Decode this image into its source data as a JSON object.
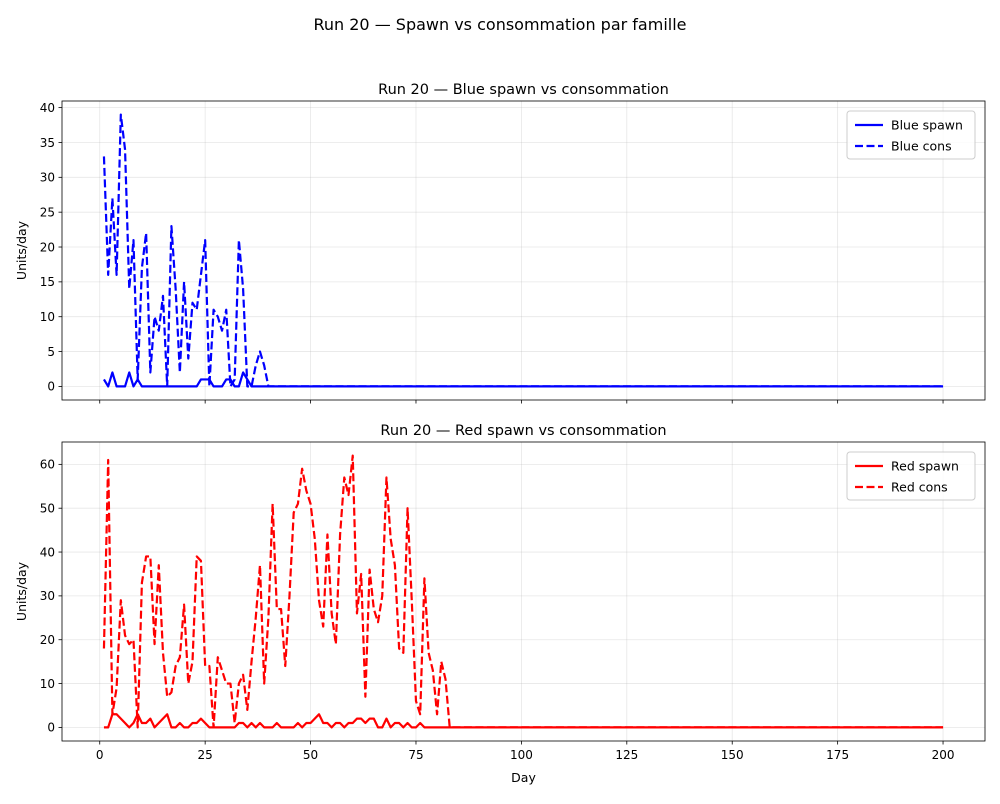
{
  "figure": {
    "suptitle": "Run 20 — Spawn vs consommation par famille"
  },
  "chart_data": [
    {
      "type": "line",
      "title": "Run 20 — Blue spawn vs consommation",
      "xlabel": "",
      "ylabel": "Units/day",
      "xlim": [
        -8.95,
        209.95
      ],
      "ylim": [
        -1.95,
        40.95
      ],
      "xticks": [
        0,
        25,
        50,
        75,
        100,
        125,
        150,
        175,
        200
      ],
      "xtick_labels_visible": false,
      "yticks": [
        0,
        5,
        10,
        15,
        20,
        25,
        30,
        35,
        40
      ],
      "grid": true,
      "legend_position": "upper right",
      "series": [
        {
          "name": "Blue spawn",
          "color": "#0000ff",
          "style": "solid",
          "points": [
            [
              1,
              1
            ],
            [
              2,
              0
            ],
            [
              3,
              2
            ],
            [
              4,
              0
            ],
            [
              5,
              0
            ],
            [
              6,
              0
            ],
            [
              7,
              2
            ],
            [
              8,
              0
            ],
            [
              9,
              1
            ],
            [
              10,
              0
            ],
            [
              15,
              0
            ],
            [
              16,
              0
            ],
            [
              17,
              0
            ],
            [
              23,
              0
            ],
            [
              24,
              1
            ],
            [
              25,
              1
            ],
            [
              26,
              1
            ],
            [
              27,
              0
            ],
            [
              29,
              0
            ],
            [
              30,
              1
            ],
            [
              31,
              1
            ],
            [
              32,
              0
            ],
            [
              33,
              0
            ],
            [
              34,
              2
            ],
            [
              35,
              1
            ],
            [
              36,
              0
            ],
            [
              200,
              0
            ]
          ]
        },
        {
          "name": "Blue cons",
          "color": "#0000ff",
          "style": "dashed",
          "points": [
            [
              1,
              33
            ],
            [
              2,
              16
            ],
            [
              3,
              27
            ],
            [
              4,
              16
            ],
            [
              5,
              39
            ],
            [
              6,
              34
            ],
            [
              7,
              14
            ],
            [
              8,
              21
            ],
            [
              9,
              1
            ],
            [
              10,
              17
            ],
            [
              11,
              22
            ],
            [
              12,
              2
            ],
            [
              13,
              10
            ],
            [
              14,
              8
            ],
            [
              15,
              13
            ],
            [
              16,
              0
            ],
            [
              17,
              23
            ],
            [
              18,
              14
            ],
            [
              19,
              2
            ],
            [
              20,
              15
            ],
            [
              21,
              4
            ],
            [
              22,
              12
            ],
            [
              23,
              11
            ],
            [
              24,
              16
            ],
            [
              25,
              21
            ],
            [
              26,
              0
            ],
            [
              27,
              11
            ],
            [
              28,
              10
            ],
            [
              29,
              8
            ],
            [
              30,
              11
            ],
            [
              31,
              0
            ],
            [
              32,
              1
            ],
            [
              33,
              21
            ],
            [
              34,
              14
            ],
            [
              35,
              0
            ],
            [
              36,
              0
            ],
            [
              37,
              3
            ],
            [
              38,
              5
            ],
            [
              39,
              3
            ],
            [
              40,
              0
            ],
            [
              200,
              0
            ]
          ]
        }
      ]
    },
    {
      "type": "line",
      "title": "Run 20 — Red spawn vs consommation",
      "xlabel": "Day",
      "ylabel": "Units/day",
      "xlim": [
        -8.95,
        209.95
      ],
      "ylim": [
        -3.1,
        65.1
      ],
      "xticks": [
        0,
        25,
        50,
        75,
        100,
        125,
        150,
        175,
        200
      ],
      "xtick_labels_visible": true,
      "yticks": [
        0,
        10,
        20,
        30,
        40,
        50,
        60
      ],
      "grid": true,
      "legend_position": "upper right",
      "series": [
        {
          "name": "Red spawn",
          "color": "#ff0000",
          "style": "solid",
          "points": [
            [
              1,
              0
            ],
            [
              2,
              0
            ],
            [
              3,
              3
            ],
            [
              4,
              3
            ],
            [
              5,
              2
            ],
            [
              6,
              1
            ],
            [
              7,
              0
            ],
            [
              8,
              1
            ],
            [
              9,
              3
            ],
            [
              10,
              1
            ],
            [
              11,
              1
            ],
            [
              12,
              2
            ],
            [
              13,
              0
            ],
            [
              14,
              1
            ],
            [
              15,
              2
            ],
            [
              16,
              3
            ],
            [
              17,
              0
            ],
            [
              18,
              0
            ],
            [
              19,
              1
            ],
            [
              20,
              0
            ],
            [
              21,
              0
            ],
            [
              22,
              1
            ],
            [
              23,
              1
            ],
            [
              24,
              2
            ],
            [
              25,
              1
            ],
            [
              26,
              0
            ],
            [
              27,
              0
            ],
            [
              28,
              0
            ],
            [
              29,
              0
            ],
            [
              30,
              0
            ],
            [
              31,
              0
            ],
            [
              32,
              0
            ],
            [
              33,
              1
            ],
            [
              34,
              1
            ],
            [
              35,
              0
            ],
            [
              36,
              1
            ],
            [
              37,
              0
            ],
            [
              38,
              1
            ],
            [
              39,
              0
            ],
            [
              40,
              0
            ],
            [
              41,
              0
            ],
            [
              42,
              1
            ],
            [
              43,
              0
            ],
            [
              44,
              0
            ],
            [
              45,
              0
            ],
            [
              46,
              0
            ],
            [
              47,
              1
            ],
            [
              48,
              0
            ],
            [
              49,
              1
            ],
            [
              50,
              1
            ],
            [
              51,
              2
            ],
            [
              52,
              3
            ],
            [
              53,
              1
            ],
            [
              54,
              1
            ],
            [
              55,
              0
            ],
            [
              56,
              1
            ],
            [
              57,
              1
            ],
            [
              58,
              0
            ],
            [
              59,
              1
            ],
            [
              60,
              1
            ],
            [
              61,
              2
            ],
            [
              62,
              2
            ],
            [
              63,
              1
            ],
            [
              64,
              2
            ],
            [
              65,
              2
            ],
            [
              66,
              0
            ],
            [
              67,
              0
            ],
            [
              68,
              2
            ],
            [
              69,
              0
            ],
            [
              70,
              1
            ],
            [
              71,
              1
            ],
            [
              72,
              0
            ],
            [
              73,
              1
            ],
            [
              74,
              0
            ],
            [
              75,
              0
            ],
            [
              76,
              1
            ],
            [
              77,
              0
            ],
            [
              200,
              0
            ]
          ]
        },
        {
          "name": "Red cons",
          "color": "#ff0000",
          "style": "dashed",
          "points": [
            [
              1,
              18
            ],
            [
              2,
              61
            ],
            [
              3,
              3
            ],
            [
              4,
              9
            ],
            [
              5,
              29
            ],
            [
              6,
              21
            ],
            [
              7,
              19
            ],
            [
              8,
              20
            ],
            [
              9,
              0
            ],
            [
              10,
              33
            ],
            [
              11,
              39
            ],
            [
              12,
              39
            ],
            [
              13,
              19
            ],
            [
              14,
              37
            ],
            [
              15,
              17
            ],
            [
              16,
              7
            ],
            [
              17,
              8
            ],
            [
              18,
              14
            ],
            [
              19,
              16
            ],
            [
              20,
              28
            ],
            [
              21,
              10
            ],
            [
              22,
              15
            ],
            [
              23,
              39
            ],
            [
              24,
              38
            ],
            [
              25,
              14
            ],
            [
              26,
              14
            ],
            [
              27,
              0
            ],
            [
              28,
              16
            ],
            [
              29,
              13
            ],
            [
              30,
              10
            ],
            [
              31,
              10
            ],
            [
              32,
              1
            ],
            [
              33,
              10
            ],
            [
              34,
              12
            ],
            [
              35,
              4
            ],
            [
              36,
              15
            ],
            [
              37,
              25
            ],
            [
              38,
              37
            ],
            [
              39,
              10
            ],
            [
              40,
              25
            ],
            [
              41,
              51
            ],
            [
              42,
              27
            ],
            [
              43,
              27
            ],
            [
              44,
              14
            ],
            [
              45,
              30
            ],
            [
              46,
              49
            ],
            [
              47,
              51
            ],
            [
              48,
              59
            ],
            [
              49,
              54
            ],
            [
              50,
              51
            ],
            [
              51,
              43
            ],
            [
              52,
              29
            ],
            [
              53,
              23
            ],
            [
              54,
              44
            ],
            [
              55,
              26
            ],
            [
              56,
              19
            ],
            [
              57,
              44
            ],
            [
              58,
              57
            ],
            [
              59,
              53
            ],
            [
              60,
              62
            ],
            [
              61,
              26
            ],
            [
              62,
              35
            ],
            [
              63,
              7
            ],
            [
              64,
              36
            ],
            [
              65,
              27
            ],
            [
              66,
              24
            ],
            [
              67,
              30
            ],
            [
              68,
              57
            ],
            [
              69,
              43
            ],
            [
              70,
              37
            ],
            [
              71,
              18
            ],
            [
              72,
              17
            ],
            [
              73,
              50
            ],
            [
              74,
              29
            ],
            [
              75,
              6
            ],
            [
              76,
              3
            ],
            [
              77,
              34
            ],
            [
              78,
              17
            ],
            [
              79,
              13
            ],
            [
              80,
              3
            ],
            [
              81,
              15
            ],
            [
              82,
              11
            ],
            [
              83,
              0
            ],
            [
              200,
              0
            ]
          ]
        }
      ]
    }
  ]
}
